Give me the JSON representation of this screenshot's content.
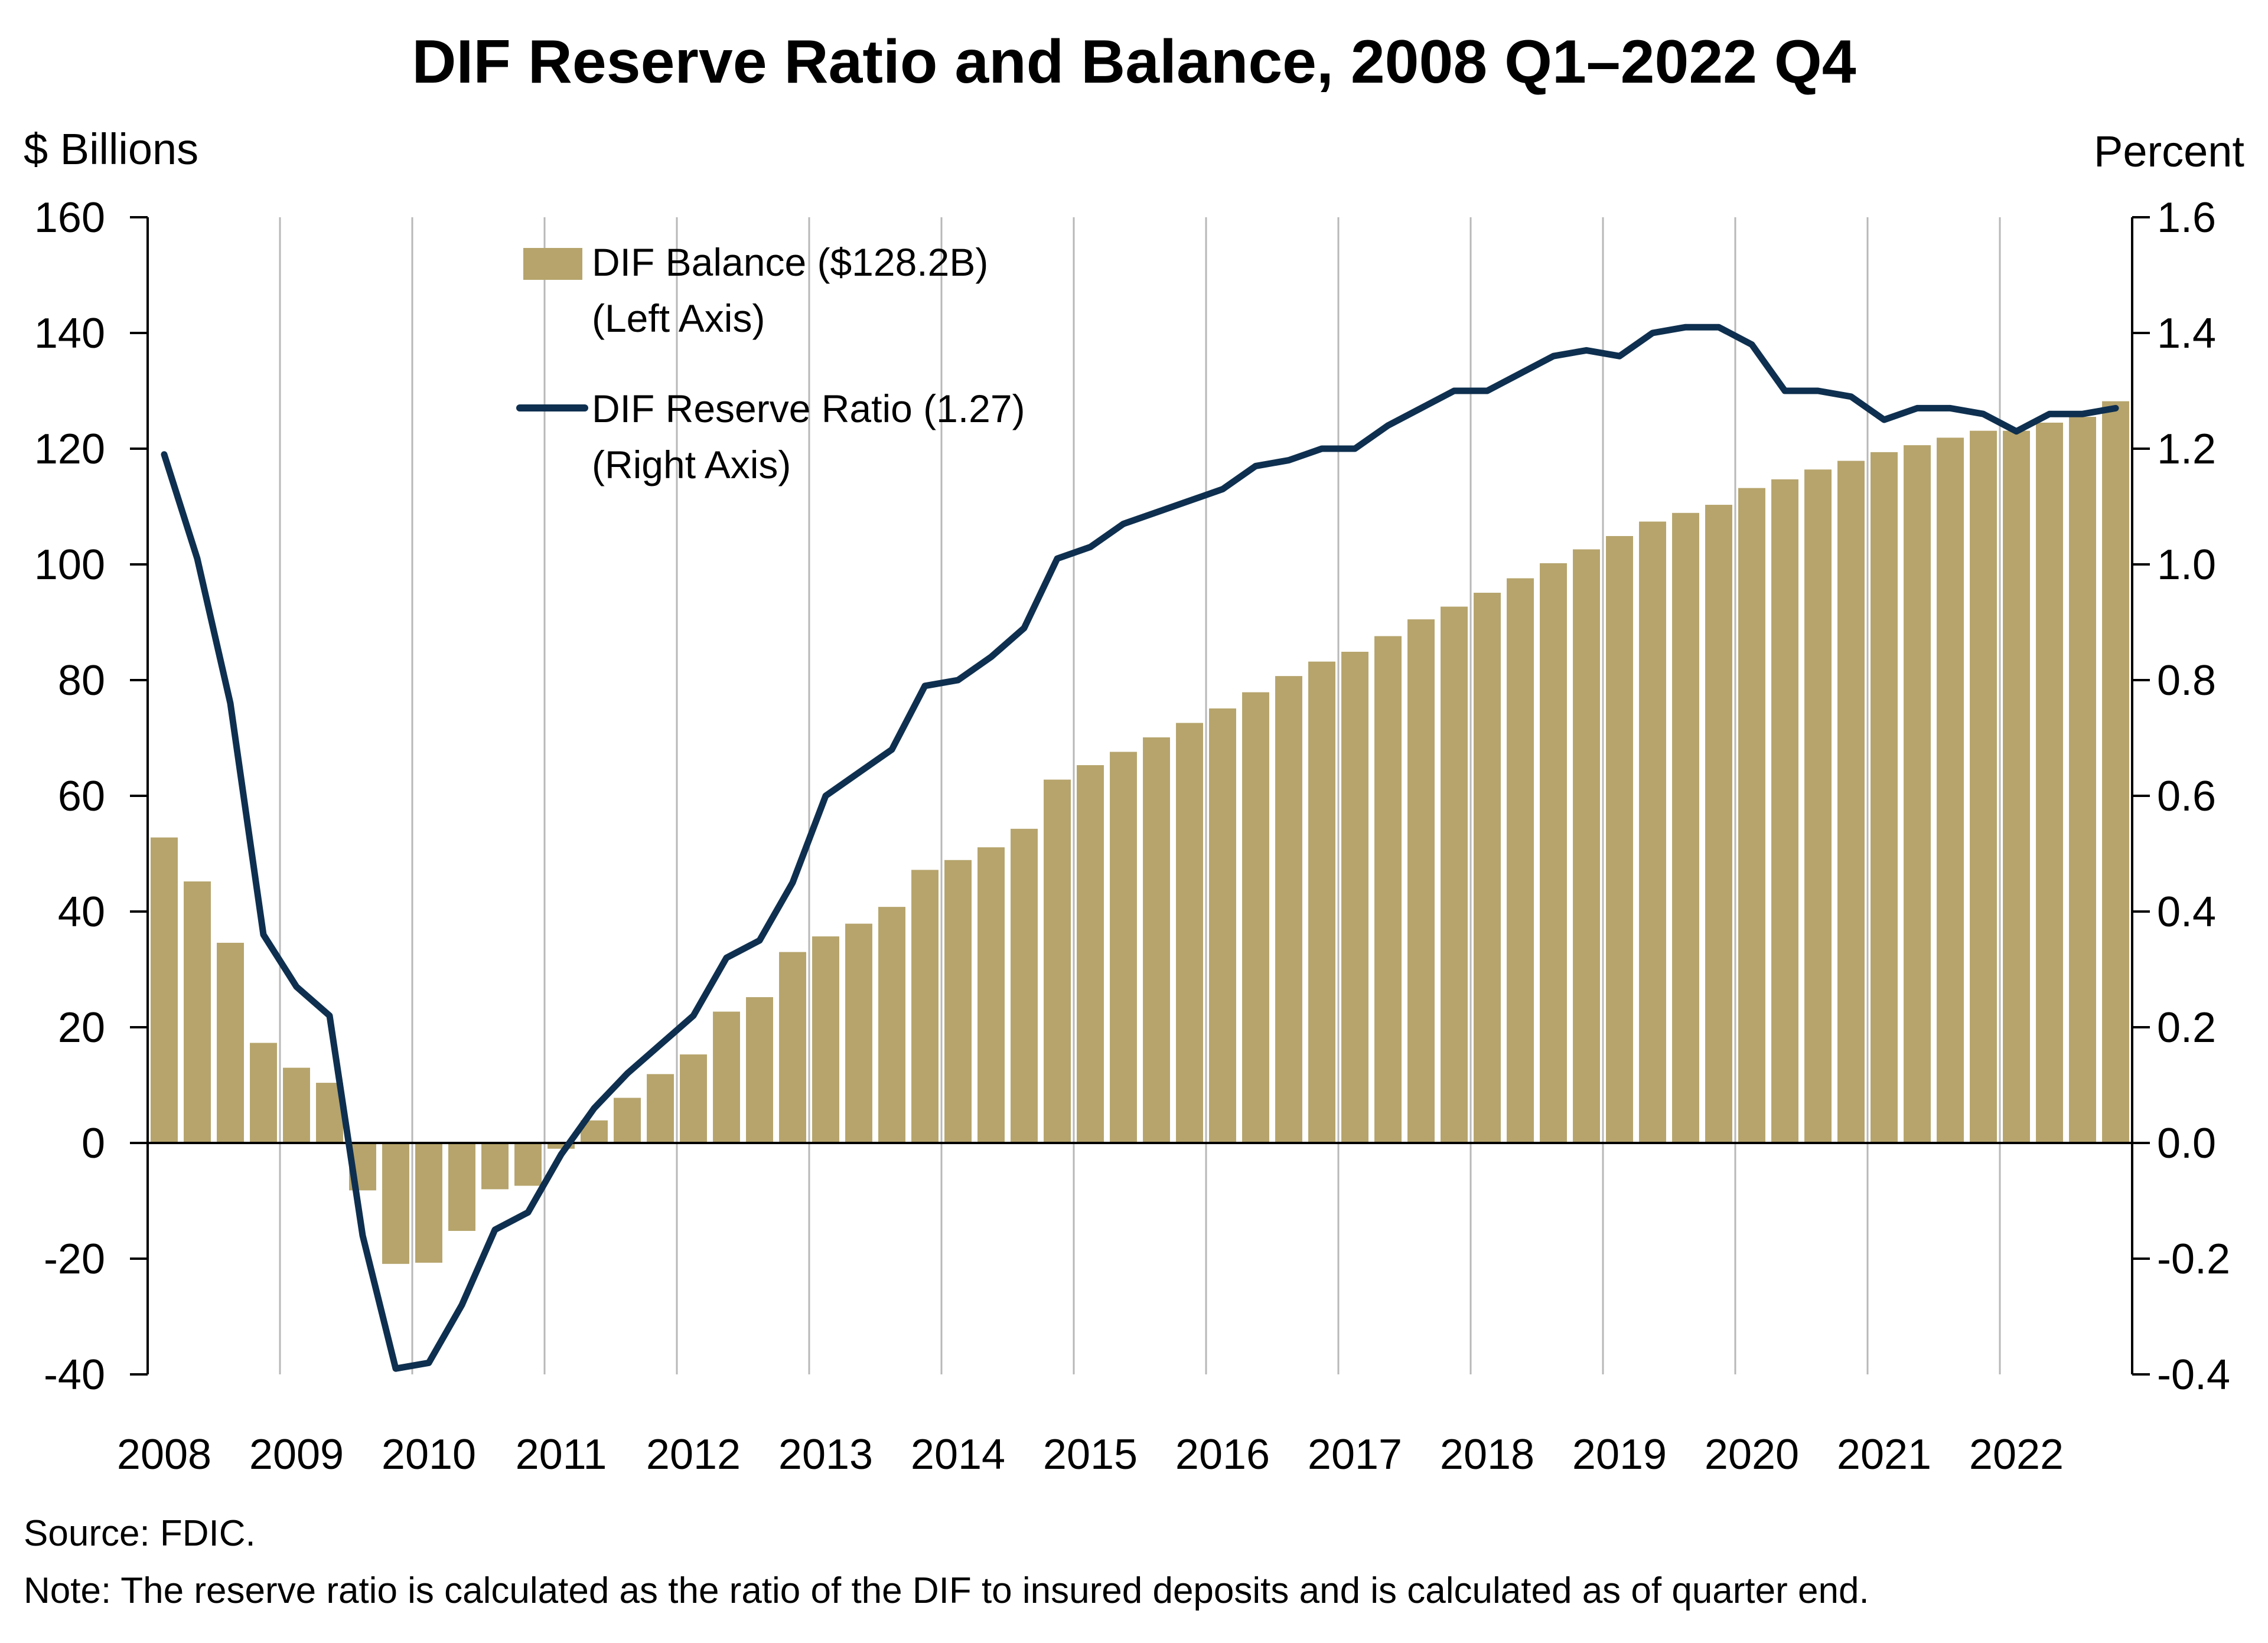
{
  "chart_data": {
    "type": "bar",
    "title": "DIF Reserve Ratio and Balance, 2008 Q1–2022 Q4",
    "y_left_label": "$ Billions",
    "y_right_label": "Percent",
    "y_left_lim": [
      -40,
      160
    ],
    "y_left_ticks": [
      "-40",
      "-20",
      "0",
      "20",
      "40",
      "60",
      "80",
      "100",
      "120",
      "140",
      "160"
    ],
    "y_right_lim": [
      -0.4,
      1.6
    ],
    "y_right_ticks": [
      "-0.4",
      "-0.2",
      "0.0",
      "0.2",
      "0.4",
      "0.6",
      "0.8",
      "1.0",
      "1.2",
      "1.4",
      "1.6"
    ],
    "x_year_labels": [
      "2008",
      "2009",
      "2010",
      "2011",
      "2012",
      "2013",
      "2014",
      "2015",
      "2016",
      "2017",
      "2018",
      "2019",
      "2020",
      "2021",
      "2022"
    ],
    "grid": "vertical lines at year starts",
    "legend_placement": "top-left",
    "colors": {
      "bars": "#b6a46c",
      "line": "#0e2f4f",
      "grid": "#b8b8b8",
      "axis": "#000000"
    },
    "series": [
      {
        "name": "DIF Balance ($128.2B)",
        "legend_sub": "(Left Axis)",
        "type": "bar",
        "axis": "left",
        "values": [
          52.8,
          45.2,
          34.6,
          17.3,
          13.0,
          10.4,
          -8.2,
          -20.9,
          -20.7,
          -15.2,
          -8.0,
          -7.4,
          -1.0,
          3.9,
          7.8,
          11.9,
          15.3,
          22.7,
          25.2,
          33.0,
          35.7,
          37.9,
          40.8,
          47.2,
          48.9,
          51.1,
          54.3,
          62.8,
          65.3,
          67.6,
          70.1,
          72.6,
          75.1,
          77.9,
          80.7,
          83.2,
          84.9,
          87.6,
          90.5,
          92.7,
          95.1,
          97.6,
          100.2,
          102.6,
          104.9,
          107.4,
          108.9,
          110.3,
          113.2,
          114.7,
          116.4,
          117.9,
          119.4,
          120.6,
          121.9,
          123.1,
          123.1,
          124.5,
          125.5,
          128.2
        ]
      },
      {
        "name": "DIF Reserve Ratio (1.27)",
        "legend_sub": "(Right Axis)",
        "type": "line",
        "axis": "right",
        "values": [
          1.19,
          1.01,
          0.76,
          0.36,
          0.27,
          0.22,
          -0.16,
          -0.39,
          -0.38,
          -0.28,
          -0.15,
          -0.12,
          -0.02,
          0.06,
          0.12,
          0.17,
          0.22,
          0.32,
          0.35,
          0.45,
          0.6,
          0.64,
          0.68,
          0.79,
          0.8,
          0.84,
          0.89,
          1.01,
          1.03,
          1.07,
          1.09,
          1.11,
          1.13,
          1.17,
          1.18,
          1.2,
          1.2,
          1.24,
          1.27,
          1.3,
          1.3,
          1.33,
          1.36,
          1.37,
          1.36,
          1.4,
          1.41,
          1.41,
          1.38,
          1.3,
          1.3,
          1.29,
          1.25,
          1.27,
          1.27,
          1.26,
          1.23,
          1.26,
          1.26,
          1.27
        ]
      }
    ]
  },
  "footer": {
    "source": "Source: FDIC.",
    "note": "Note: The reserve ratio is calculated as the ratio of the DIF to insured deposits and is calculated as of quarter end."
  }
}
